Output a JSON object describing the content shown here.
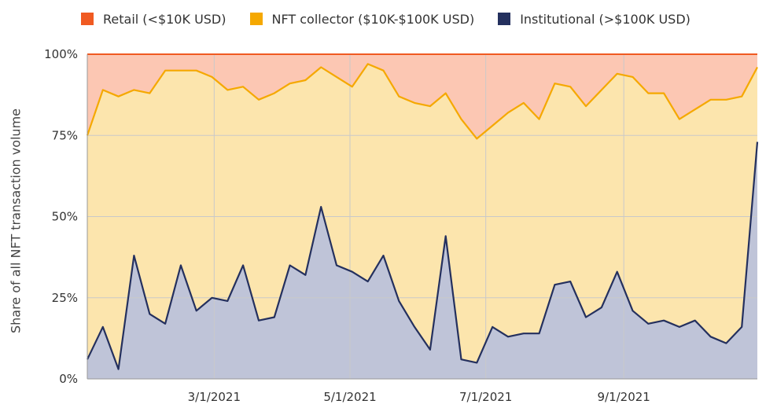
{
  "chart_data": {
    "type": "area",
    "ylabel": "Share of all NFT transaction volume",
    "ylim": [
      0,
      100
    ],
    "yticks": [
      "0%",
      "25%",
      "50%",
      "75%",
      "100%"
    ],
    "xticks": [
      {
        "label": "3/1/2021",
        "date": "2021-03-01"
      },
      {
        "label": "5/1/2021",
        "date": "2021-05-01"
      },
      {
        "label": "7/1/2021",
        "date": "2021-07-01"
      },
      {
        "label": "9/1/2021",
        "date": "2021-09-01"
      }
    ],
    "x": [
      "2021-01-03",
      "2021-01-10",
      "2021-01-17",
      "2021-01-24",
      "2021-01-31",
      "2021-02-07",
      "2021-02-14",
      "2021-02-21",
      "2021-02-28",
      "2021-03-07",
      "2021-03-14",
      "2021-03-21",
      "2021-03-28",
      "2021-04-04",
      "2021-04-11",
      "2021-04-18",
      "2021-04-25",
      "2021-05-02",
      "2021-05-09",
      "2021-05-16",
      "2021-05-23",
      "2021-05-30",
      "2021-06-06",
      "2021-06-13",
      "2021-06-20",
      "2021-06-27",
      "2021-07-04",
      "2021-07-11",
      "2021-07-18",
      "2021-07-25",
      "2021-08-01",
      "2021-08-08",
      "2021-08-15",
      "2021-08-22",
      "2021-08-29",
      "2021-09-05",
      "2021-09-12",
      "2021-09-19",
      "2021-09-26",
      "2021-10-03",
      "2021-10-10",
      "2021-10-17",
      "2021-10-24",
      "2021-10-31"
    ],
    "series": [
      {
        "name": "Institutional (>$100K USD)",
        "color": "#24305e",
        "fill": "#bfc4d8",
        "values": [
          6,
          16,
          3,
          38,
          20,
          17,
          35,
          21,
          25,
          24,
          35,
          18,
          19,
          35,
          32,
          53,
          35,
          33,
          30,
          38,
          24,
          16,
          9,
          44,
          6,
          5,
          16,
          13,
          14,
          14,
          29,
          30,
          19,
          22,
          33,
          21,
          17,
          18,
          16,
          18,
          13,
          11,
          16,
          73
        ]
      },
      {
        "name": "NFT collector ($10K-$100K USD)",
        "color": "#f5a800",
        "fill": "#fce5ad",
        "values": [
          75,
          89,
          87,
          89,
          88,
          95,
          95,
          95,
          93,
          89,
          90,
          86,
          88,
          91,
          92,
          96,
          93,
          90,
          97,
          95,
          87,
          85,
          84,
          88,
          80,
          74,
          78,
          82,
          85,
          80,
          91,
          90,
          84,
          89,
          94,
          93,
          88,
          88,
          80,
          83,
          86,
          86,
          87,
          96
        ]
      },
      {
        "name": "Retail (<$10K USD)",
        "color": "#f05a22",
        "fill": "#fcc7b3",
        "values": [
          100,
          100,
          100,
          100,
          100,
          100,
          100,
          100,
          100,
          100,
          100,
          100,
          100,
          100,
          100,
          100,
          100,
          100,
          100,
          100,
          100,
          100,
          100,
          100,
          100,
          100,
          100,
          100,
          100,
          100,
          100,
          100,
          100,
          100,
          100,
          100,
          100,
          100,
          100,
          100,
          100,
          100,
          100,
          100
        ]
      }
    ],
    "legend": [
      {
        "label": "Retail (<$10K USD)",
        "color": "#f05a22"
      },
      {
        "label": "NFT collector ($10K-$100K USD)",
        "color": "#f5a800"
      },
      {
        "label": "Institutional (>$100K USD)",
        "color": "#24305e"
      }
    ],
    "grid": true,
    "legend_position": "top"
  }
}
